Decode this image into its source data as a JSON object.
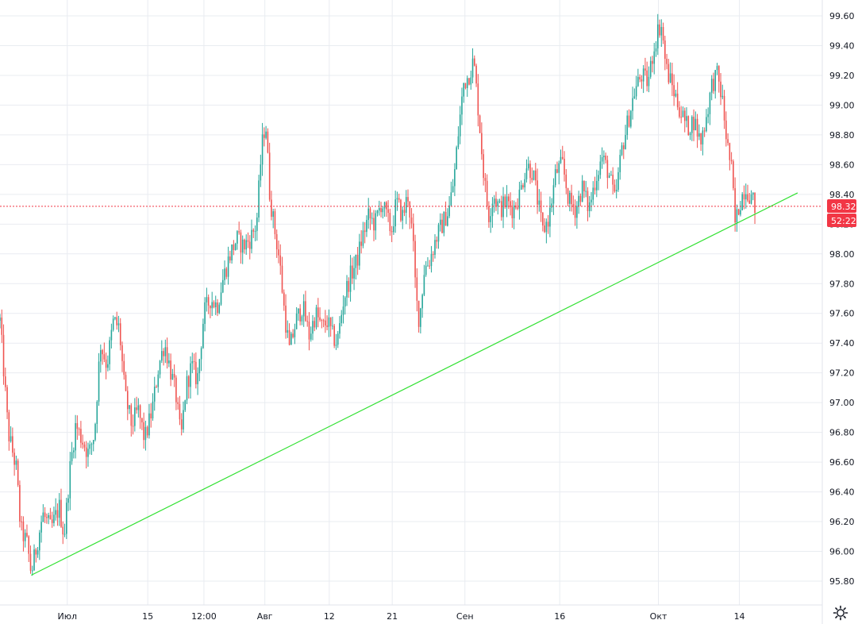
{
  "chart_data": {
    "type": "candlestick",
    "title": "",
    "xlabel": "",
    "ylabel": "",
    "ylim": [
      95.75,
      99.7
    ],
    "grid": true,
    "legend": "none",
    "y_ticks": [
      "99.60",
      "99.40",
      "99.20",
      "99.00",
      "98.80",
      "98.60",
      "98.40",
      "98.20",
      "98.00",
      "97.80",
      "97.60",
      "97.40",
      "97.20",
      "97.00",
      "96.80",
      "96.60",
      "96.40",
      "96.20",
      "96.00",
      "95.80"
    ],
    "x_ticks": [
      {
        "label": "Июл",
        "t": 0.0818
      },
      {
        "label": "15",
        "t": 0.1797
      },
      {
        "label": "12:00",
        "t": 0.248
      },
      {
        "label": "Авг",
        "t": 0.3221
      },
      {
        "label": "12",
        "t": 0.4004
      },
      {
        "label": "21",
        "t": 0.477
      },
      {
        "label": "Сен",
        "t": 0.5654
      },
      {
        "label": "16",
        "t": 0.6807
      },
      {
        "label": "Окт",
        "t": 0.8007
      },
      {
        "label": "14",
        "t": 0.8992
      }
    ],
    "series": [
      {
        "values": [
          {
            "t": 0.0,
            "c": 97.55
          },
          {
            "t": 0.01,
            "c": 96.8
          },
          {
            "t": 0.02,
            "c": 96.55
          },
          {
            "t": 0.025,
            "c": 96.15
          },
          {
            "t": 0.033,
            "c": 96.05
          },
          {
            "t": 0.038,
            "c": 95.85
          },
          {
            "t": 0.045,
            "c": 96.05
          },
          {
            "t": 0.052,
            "c": 96.25
          },
          {
            "t": 0.062,
            "c": 96.15
          },
          {
            "t": 0.072,
            "c": 96.3
          },
          {
            "t": 0.078,
            "c": 96.1
          },
          {
            "t": 0.085,
            "c": 96.55
          },
          {
            "t": 0.092,
            "c": 96.85
          },
          {
            "t": 0.1,
            "c": 96.75
          },
          {
            "t": 0.108,
            "c": 96.65
          },
          {
            "t": 0.115,
            "c": 96.8
          },
          {
            "t": 0.122,
            "c": 97.4
          },
          {
            "t": 0.13,
            "c": 97.25
          },
          {
            "t": 0.138,
            "c": 97.55
          },
          {
            "t": 0.145,
            "c": 97.5
          },
          {
            "t": 0.152,
            "c": 97.05
          },
          {
            "t": 0.16,
            "c": 96.85
          },
          {
            "t": 0.168,
            "c": 96.95
          },
          {
            "t": 0.176,
            "c": 96.75
          },
          {
            "t": 0.185,
            "c": 96.95
          },
          {
            "t": 0.193,
            "c": 97.25
          },
          {
            "t": 0.2,
            "c": 97.4
          },
          {
            "t": 0.208,
            "c": 97.2
          },
          {
            "t": 0.214,
            "c": 97.05
          },
          {
            "t": 0.22,
            "c": 96.75
          },
          {
            "t": 0.226,
            "c": 97.1
          },
          {
            "t": 0.233,
            "c": 97.25
          },
          {
            "t": 0.24,
            "c": 97.15
          },
          {
            "t": 0.248,
            "c": 97.6
          },
          {
            "t": 0.256,
            "c": 97.7
          },
          {
            "t": 0.264,
            "c": 97.65
          },
          {
            "t": 0.272,
            "c": 97.85
          },
          {
            "t": 0.28,
            "c": 98.0
          },
          {
            "t": 0.288,
            "c": 98.1
          },
          {
            "t": 0.296,
            "c": 98.05
          },
          {
            "t": 0.304,
            "c": 98.1
          },
          {
            "t": 0.312,
            "c": 98.2
          },
          {
            "t": 0.318,
            "c": 98.7
          },
          {
            "t": 0.323,
            "c": 98.9
          },
          {
            "t": 0.328,
            "c": 98.4
          },
          {
            "t": 0.333,
            "c": 98.2
          },
          {
            "t": 0.34,
            "c": 97.95
          },
          {
            "t": 0.346,
            "c": 97.6
          },
          {
            "t": 0.352,
            "c": 97.35
          },
          {
            "t": 0.36,
            "c": 97.55
          },
          {
            "t": 0.368,
            "c": 97.65
          },
          {
            "t": 0.376,
            "c": 97.45
          },
          {
            "t": 0.384,
            "c": 97.6
          },
          {
            "t": 0.392,
            "c": 97.5
          },
          {
            "t": 0.398,
            "c": 97.55
          },
          {
            "t": 0.404,
            "c": 97.45
          },
          {
            "t": 0.41,
            "c": 97.4
          },
          {
            "t": 0.418,
            "c": 97.7
          },
          {
            "t": 0.426,
            "c": 97.85
          },
          {
            "t": 0.434,
            "c": 97.95
          },
          {
            "t": 0.44,
            "c": 98.1
          },
          {
            "t": 0.448,
            "c": 98.25
          },
          {
            "t": 0.456,
            "c": 98.2
          },
          {
            "t": 0.464,
            "c": 98.35
          },
          {
            "t": 0.47,
            "c": 98.25
          },
          {
            "t": 0.476,
            "c": 98.15
          },
          {
            "t": 0.482,
            "c": 98.35
          },
          {
            "t": 0.49,
            "c": 98.25
          },
          {
            "t": 0.496,
            "c": 98.4
          },
          {
            "t": 0.502,
            "c": 98.1
          },
          {
            "t": 0.506,
            "c": 97.7
          },
          {
            "t": 0.51,
            "c": 97.55
          },
          {
            "t": 0.516,
            "c": 97.9
          },
          {
            "t": 0.522,
            "c": 97.95
          },
          {
            "t": 0.53,
            "c": 98.1
          },
          {
            "t": 0.538,
            "c": 98.2
          },
          {
            "t": 0.546,
            "c": 98.3
          },
          {
            "t": 0.552,
            "c": 98.5
          },
          {
            "t": 0.558,
            "c": 98.85
          },
          {
            "t": 0.564,
            "c": 99.15
          },
          {
            "t": 0.57,
            "c": 99.2
          },
          {
            "t": 0.576,
            "c": 99.3
          },
          {
            "t": 0.582,
            "c": 98.95
          },
          {
            "t": 0.588,
            "c": 98.55
          },
          {
            "t": 0.594,
            "c": 98.25
          },
          {
            "t": 0.6,
            "c": 98.4
          },
          {
            "t": 0.608,
            "c": 98.3
          },
          {
            "t": 0.616,
            "c": 98.35
          },
          {
            "t": 0.624,
            "c": 98.3
          },
          {
            "t": 0.632,
            "c": 98.4
          },
          {
            "t": 0.64,
            "c": 98.6
          },
          {
            "t": 0.648,
            "c": 98.55
          },
          {
            "t": 0.654,
            "c": 98.35
          },
          {
            "t": 0.66,
            "c": 98.15
          },
          {
            "t": 0.668,
            "c": 98.25
          },
          {
            "t": 0.676,
            "c": 98.55
          },
          {
            "t": 0.684,
            "c": 98.6
          },
          {
            "t": 0.692,
            "c": 98.35
          },
          {
            "t": 0.7,
            "c": 98.3
          },
          {
            "t": 0.708,
            "c": 98.45
          },
          {
            "t": 0.716,
            "c": 98.3
          },
          {
            "t": 0.724,
            "c": 98.5
          },
          {
            "t": 0.732,
            "c": 98.65
          },
          {
            "t": 0.74,
            "c": 98.55
          },
          {
            "t": 0.748,
            "c": 98.35
          },
          {
            "t": 0.756,
            "c": 98.7
          },
          {
            "t": 0.764,
            "c": 98.9
          },
          {
            "t": 0.772,
            "c": 99.1
          },
          {
            "t": 0.78,
            "c": 99.2
          },
          {
            "t": 0.788,
            "c": 99.15
          },
          {
            "t": 0.794,
            "c": 99.35
          },
          {
            "t": 0.8,
            "c": 99.5
          },
          {
            "t": 0.804,
            "c": 99.55
          },
          {
            "t": 0.81,
            "c": 99.25
          },
          {
            "t": 0.816,
            "c": 99.15
          },
          {
            "t": 0.822,
            "c": 99.05
          },
          {
            "t": 0.828,
            "c": 98.95
          },
          {
            "t": 0.836,
            "c": 98.85
          },
          {
            "t": 0.844,
            "c": 98.9
          },
          {
            "t": 0.852,
            "c": 98.75
          },
          {
            "t": 0.86,
            "c": 98.95
          },
          {
            "t": 0.866,
            "c": 99.15
          },
          {
            "t": 0.872,
            "c": 99.2
          },
          {
            "t": 0.878,
            "c": 99.05
          },
          {
            "t": 0.884,
            "c": 98.75
          },
          {
            "t": 0.89,
            "c": 98.55
          },
          {
            "t": 0.894,
            "c": 98.2
          },
          {
            "t": 0.9,
            "c": 98.35
          },
          {
            "t": 0.906,
            "c": 98.45
          },
          {
            "t": 0.912,
            "c": 98.4
          },
          {
            "t": 0.918,
            "c": 98.32
          }
        ]
      }
    ],
    "annotations": [
      {
        "type": "trendline",
        "color": "#33e133",
        "from": {
          "t": 0.038,
          "v": 95.84
        },
        "to": {
          "t": 0.97,
          "v": 98.41
        }
      },
      {
        "type": "price-line",
        "color": "#f23645",
        "value": 98.32
      }
    ],
    "price_badge": "98.32",
    "time_badge": "52:22"
  },
  "colors": {
    "up": "#26a69a",
    "down": "#ef5350",
    "grid": "#e9ecf1",
    "axis_text": "#131722",
    "badge": "#f23645"
  },
  "icons": {
    "settings": "gear-icon"
  }
}
